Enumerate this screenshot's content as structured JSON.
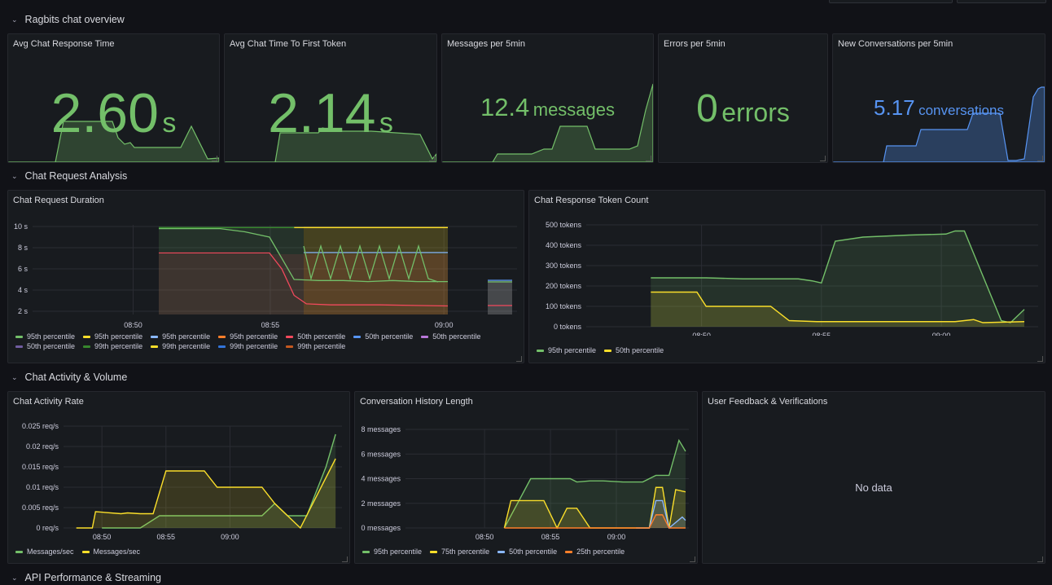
{
  "rows": {
    "overview": "Ragbits chat overview",
    "analysis": "Chat Request Analysis",
    "activity": "Chat Activity & Volume",
    "api": "API Performance & Streaming"
  },
  "stats": [
    {
      "title": "Avg Chat Response Time",
      "value": "2.60",
      "unit": "s",
      "color": "#73bf69"
    },
    {
      "title": "Avg Chat Time To First Token",
      "value": "2.14",
      "unit": "s",
      "color": "#73bf69"
    },
    {
      "title": "Messages per 5min",
      "value": "12.4",
      "unit": "messages",
      "color": "#73bf69"
    },
    {
      "title": "Errors per 5min",
      "value": "0",
      "unit": "errors",
      "color": "#73bf69"
    },
    {
      "title": "New Conversations per 5min",
      "value": "5.17",
      "unit": "conversations",
      "color": "#5794f2"
    }
  ],
  "panels": {
    "duration": {
      "title": "Chat Request Duration",
      "legend": [
        {
          "label": "95th percentile",
          "color": "#73bf69"
        },
        {
          "label": "95th percentile",
          "color": "#fade2a"
        },
        {
          "label": "95th percentile",
          "color": "#8ab8ff"
        },
        {
          "label": "95th percentile",
          "color": "#ff7f2a"
        },
        {
          "label": "50th percentile",
          "color": "#f2495c"
        },
        {
          "label": "50th percentile",
          "color": "#5794f2"
        },
        {
          "label": "50th percentile",
          "color": "#b877d9"
        },
        {
          "label": "50th percentile",
          "color": "#705da0"
        },
        {
          "label": "99th percentile",
          "color": "#37872d"
        },
        {
          "label": "99th percentile",
          "color": "#fade2a"
        },
        {
          "label": "99th percentile",
          "color": "#3274d9"
        },
        {
          "label": "99th percentile",
          "color": "#c4581f"
        }
      ]
    },
    "tokens": {
      "title": "Chat Response Token Count",
      "legend": [
        {
          "label": "95th percentile",
          "color": "#73bf69"
        },
        {
          "label": "50th percentile",
          "color": "#fade2a"
        }
      ]
    },
    "activity": {
      "title": "Chat Activity Rate",
      "legend": [
        {
          "label": "Messages/sec",
          "color": "#73bf69"
        },
        {
          "label": "Messages/sec",
          "color": "#fade2a"
        }
      ]
    },
    "history": {
      "title": "Conversation History Length",
      "legend": [
        {
          "label": "95th percentile",
          "color": "#73bf69"
        },
        {
          "label": "75th percentile",
          "color": "#fade2a"
        },
        {
          "label": "50th percentile",
          "color": "#8ab8ff"
        },
        {
          "label": "25th percentile",
          "color": "#ff7f2a"
        }
      ]
    },
    "feedback": {
      "title": "User Feedback & Verifications",
      "empty": "No data"
    }
  },
  "chart_data": [
    {
      "type": "line",
      "title": "Chat Request Duration",
      "x_ticks": [
        "08:50",
        "08:55",
        "09:00"
      ],
      "y_ticks": [
        "10 s",
        "8 s",
        "6 s",
        "4 s",
        "2 s"
      ],
      "ylim": [
        1,
        10.5
      ],
      "series": [
        {
          "name": "95th percentile",
          "color": "#73bf69",
          "x": [
            2.6,
            3.1,
            3.3,
            3.5,
            3.7,
            3.9,
            4.1,
            4.3,
            4.5,
            4.7,
            4.8,
            4.95
          ],
          "y": [
            9.8,
            9.8,
            9.5,
            9.0,
            5.0,
            4.9,
            4.9,
            4.8,
            4.9,
            4.8,
            4.8,
            4.8
          ]
        },
        {
          "name": "50th percentile",
          "color": "#f2495c",
          "x": [
            2.6,
            3.5,
            3.6,
            3.7,
            3.8,
            4.0,
            4.4,
            4.95
          ],
          "y": [
            7.5,
            7.5,
            6.0,
            3.5,
            2.7,
            2.6,
            2.6,
            2.5
          ]
        },
        {
          "name": "99th percentile",
          "color": "#fade2a",
          "x": [
            3.7,
            4.95
          ],
          "y": [
            9.9,
            9.9
          ]
        },
        {
          "name": "99th percentile",
          "color": "#37872d",
          "x": [
            2.6,
            3.5,
            3.7
          ],
          "y": [
            9.9,
            9.9,
            9.9
          ]
        }
      ]
    },
    {
      "type": "line",
      "title": "Chat Response Token Count",
      "x_ticks": [
        "08:50",
        "08:55",
        "09:00"
      ],
      "y_ticks": [
        "500 tokens",
        "400 tokens",
        "300 tokens",
        "200 tokens",
        "100 tokens",
        "0 tokens"
      ],
      "ylim": [
        0,
        500
      ],
      "series": [
        {
          "name": "95th percentile",
          "color": "#73bf69",
          "x": [
            0.7,
            1.3,
            1.7,
            2.3,
            2.45,
            2.55,
            2.7,
            3.0,
            3.5,
            3.9,
            4.0,
            4.1,
            4.5,
            4.6,
            4.75
          ],
          "y": [
            240,
            240,
            235,
            235,
            225,
            215,
            420,
            440,
            450,
            455,
            470,
            470,
            30,
            20,
            85
          ]
        },
        {
          "name": "50th percentile",
          "color": "#fade2a",
          "x": [
            0.7,
            1.2,
            1.3,
            2.0,
            2.2,
            2.5,
            3.0,
            3.5,
            4.0,
            4.2,
            4.3,
            4.75
          ],
          "y": [
            170,
            170,
            100,
            100,
            30,
            25,
            25,
            25,
            25,
            35,
            20,
            25
          ]
        }
      ]
    },
    {
      "type": "line",
      "title": "Chat Activity Rate",
      "x_ticks": [
        "08:50",
        "08:55",
        "09:00"
      ],
      "y_ticks": [
        "0.025 req/s",
        "0.02 req/s",
        "0.015 req/s",
        "0.01 req/s",
        "0.005 req/s",
        "0 req/s"
      ],
      "ylim": [
        0,
        0.025
      ],
      "series": [
        {
          "name": "Messages/sec",
          "color": "#73bf69",
          "x": [
            0.6,
            1.2,
            1.5,
            3.1,
            3.3,
            3.5,
            3.8,
            4.1,
            4.25
          ],
          "y": [
            0,
            0,
            0.003,
            0.003,
            0.006,
            0.003,
            0.003,
            0.015,
            0.023
          ]
        },
        {
          "name": "Messages/sec",
          "color": "#fade2a",
          "x": [
            0.2,
            0.45,
            0.5,
            0.9,
            1.0,
            1.2,
            1.4,
            1.6,
            2.2,
            2.4,
            2.5,
            3.1,
            3.3,
            3.7,
            4.25
          ],
          "y": [
            0,
            0,
            0.004,
            0.0035,
            0.0037,
            0.0035,
            0.0035,
            0.014,
            0.014,
            0.01,
            0.01,
            0.01,
            0.006,
            0,
            0.017
          ]
        }
      ]
    },
    {
      "type": "line",
      "title": "Conversation History Length",
      "x_ticks": [
        "08:50",
        "08:55",
        "09:00"
      ],
      "y_ticks": [
        "8 messages",
        "6 messages",
        "4 messages",
        "2 messages",
        "0 messages"
      ],
      "ylim": [
        0,
        9
      ],
      "series": [
        {
          "name": "95th percentile",
          "color": "#73bf69",
          "x": [
            1.5,
            1.9,
            2.5,
            2.6,
            2.8,
            3.0,
            3.3,
            3.6,
            3.8,
            4.0,
            4.15,
            4.25
          ],
          "y": [
            0,
            4.5,
            4.5,
            4.2,
            4.3,
            4.3,
            4.2,
            4.2,
            4.8,
            4.8,
            8.0,
            7.0
          ]
        },
        {
          "name": "75th percentile",
          "color": "#fade2a",
          "x": [
            1.5,
            1.6,
            2.1,
            2.3,
            2.45,
            2.6,
            2.8,
            3.0,
            3.5,
            3.7,
            3.8,
            3.9,
            4.0,
            4.1,
            4.25
          ],
          "y": [
            0,
            2.5,
            2.5,
            0,
            1.8,
            1.8,
            0,
            0,
            0,
            0,
            3.7,
            3.7,
            0,
            3.5,
            3.3
          ]
        },
        {
          "name": "50th percentile",
          "color": "#8ab8ff",
          "x": [
            3.5,
            3.7,
            3.8,
            3.9,
            4.0,
            4.2,
            4.25
          ],
          "y": [
            0,
            0,
            2.5,
            2.5,
            0,
            1,
            0.7
          ]
        },
        {
          "name": "25th percentile",
          "color": "#ff7f2a",
          "x": [
            1.5,
            3.7,
            3.8,
            3.9,
            4.0,
            4.25
          ],
          "y": [
            0,
            0,
            1.2,
            1.2,
            0,
            0
          ]
        }
      ]
    }
  ]
}
